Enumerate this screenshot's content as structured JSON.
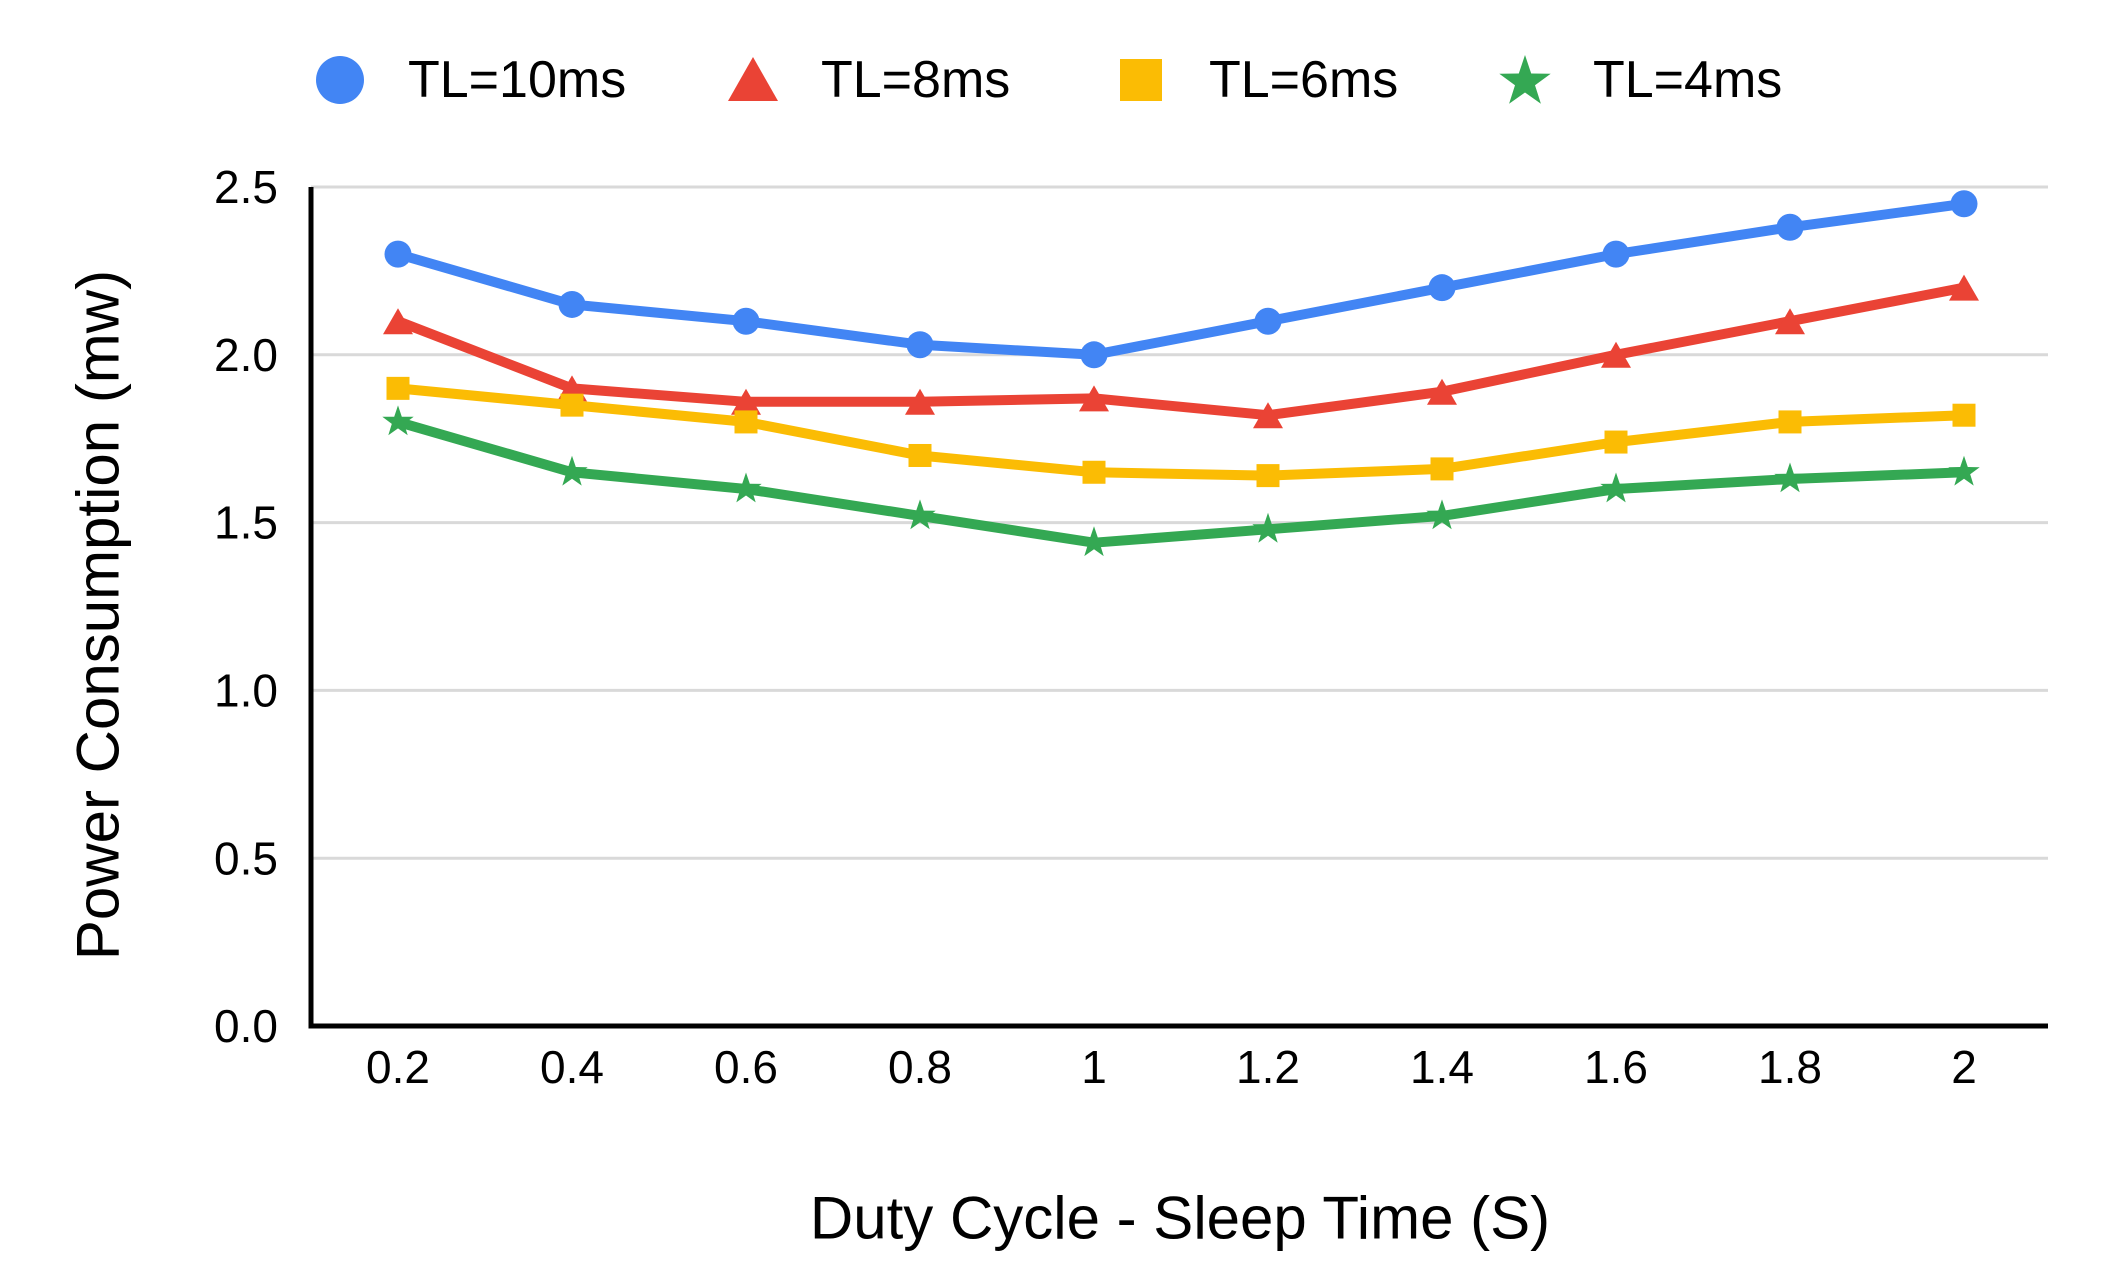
{
  "chart_data": {
    "type": "line",
    "title": "",
    "xlabel": "Duty Cycle - Sleep Time (S)",
    "ylabel": "Power Consumption (mw)",
    "x": [
      0.2,
      0.4,
      0.6,
      0.8,
      1,
      1.2,
      1.4,
      1.6,
      1.8,
      2
    ],
    "x_tick_labels": [
      "0.2",
      "0.4",
      "0.6",
      "0.8",
      "1",
      "1.2",
      "1.4",
      "1.6",
      "1.8",
      "2"
    ],
    "ylim": [
      0,
      2.5
    ],
    "yticks": [
      0,
      0.5,
      1,
      1.5,
      2,
      2.5
    ],
    "ytick_labels": [
      "0.0",
      "0.5",
      "1.0",
      "1.5",
      "2.0",
      "2.5"
    ],
    "grid": true,
    "legend_position": "top",
    "series": [
      {
        "name": "TL=10ms",
        "marker": "circle",
        "color": "#4285F4",
        "values": [
          2.3,
          2.15,
          2.1,
          2.03,
          2.0,
          2.1,
          2.2,
          2.3,
          2.38,
          2.45
        ]
      },
      {
        "name": "TL=8ms",
        "marker": "triangle",
        "color": "#EA4335",
        "values": [
          2.1,
          1.9,
          1.86,
          1.86,
          1.87,
          1.82,
          1.89,
          2.0,
          2.1,
          2.2
        ]
      },
      {
        "name": "TL=6ms",
        "marker": "square",
        "color": "#FBBC04",
        "values": [
          1.9,
          1.85,
          1.8,
          1.7,
          1.65,
          1.64,
          1.66,
          1.74,
          1.8,
          1.82
        ]
      },
      {
        "name": "TL=4ms",
        "marker": "star",
        "color": "#34A853",
        "values": [
          1.8,
          1.65,
          1.6,
          1.52,
          1.44,
          1.48,
          1.52,
          1.6,
          1.63,
          1.65
        ]
      }
    ],
    "colors": {
      "gridline": "#D9D9D9",
      "axis": "#000000",
      "text": "#000000",
      "background": "#FFFFFF"
    }
  }
}
